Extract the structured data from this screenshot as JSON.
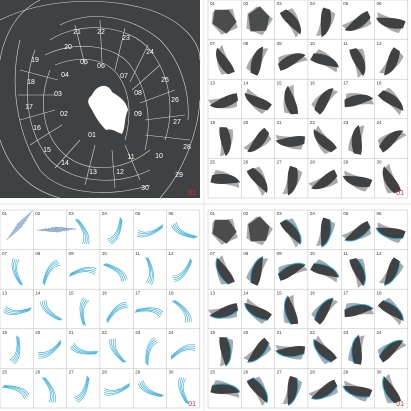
{
  "region_panel": {
    "labels": [
      "21",
      "22",
      "23",
      "24",
      "20",
      "19",
      "18",
      "17",
      "16",
      "15",
      "14",
      "13",
      "12",
      "11",
      "10",
      "09",
      "08",
      "07",
      "06",
      "05",
      "04",
      "03",
      "02",
      "01",
      "25",
      "26",
      "27",
      "28",
      "29",
      "30"
    ]
  },
  "grid_labels": [
    "01",
    "02",
    "03",
    "04",
    "05",
    "06",
    "07",
    "08",
    "09",
    "10",
    "11",
    "12",
    "13",
    "14",
    "15",
    "16",
    "17",
    "18",
    "19",
    "20",
    "21",
    "22",
    "23",
    "24",
    "25",
    "26",
    "27",
    "28",
    "29",
    "30"
  ],
  "panel_tags": [
    "01",
    "01",
    "01",
    "01"
  ]
}
